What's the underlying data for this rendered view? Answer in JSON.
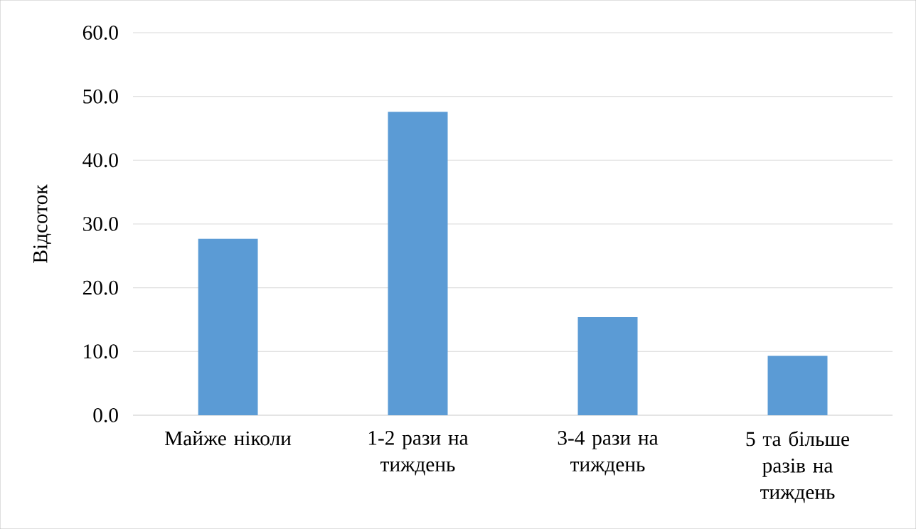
{
  "chart_data": {
    "type": "bar",
    "ylabel": "Відсоток",
    "categories": [
      "Майже ніколи",
      "1-2 рази на тиждень",
      "3-4 рази на тиждень",
      "5 та більше разів на тиждень"
    ],
    "values": [
      27.7,
      47.6,
      15.4,
      9.3
    ],
    "color": "#5b9bd5",
    "ylim": [
      0,
      60
    ],
    "yticks": [
      {
        "value": 0,
        "label": "0.0"
      },
      {
        "value": 10,
        "label": "10.0"
      },
      {
        "value": 20,
        "label": "20.0"
      },
      {
        "value": 30,
        "label": "30.0"
      },
      {
        "value": 40,
        "label": "40.0"
      },
      {
        "value": 50,
        "label": "50.0"
      },
      {
        "value": 60,
        "label": "60.0"
      }
    ],
    "grid": "y"
  }
}
